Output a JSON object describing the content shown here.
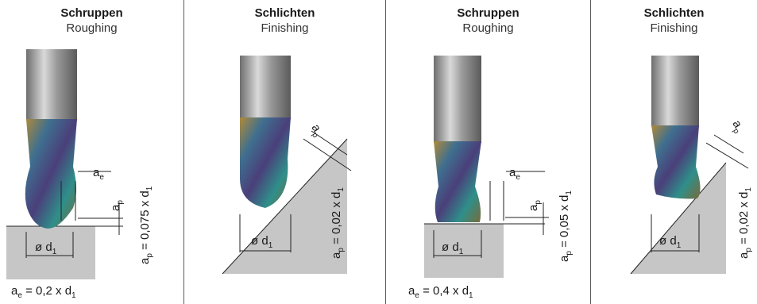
{
  "panels": [
    {
      "title": "Schruppen",
      "subtitle": "Roughing",
      "ae_label": "a",
      "ae_sub": "e",
      "ap_label": "a",
      "ap_sub": "p",
      "diameter_label": "ø d",
      "diameter_sub": "1",
      "ap_formula_pre": "a",
      "ap_formula_sub": "p",
      "ap_formula_post": " = 0,075 x d",
      "ap_formula_sub2": "1",
      "ae_formula_pre": "a",
      "ae_formula_sub": "e",
      "ae_formula_post": " = 0,2 x d",
      "ae_formula_sub2": "1"
    },
    {
      "title": "Schlichten",
      "subtitle": "Finishing",
      "ap_label": "a",
      "ap_sub": "p",
      "diameter_label": "ø d",
      "diameter_sub": "1",
      "ap_formula_pre": "a",
      "ap_formula_sub": "p",
      "ap_formula_post": " = 0,02 x d",
      "ap_formula_sub2": "1"
    },
    {
      "title": "Schruppen",
      "subtitle": "Roughing",
      "ae_label": "a",
      "ae_sub": "e",
      "ap_label": "a",
      "ap_sub": "p",
      "diameter_label": "ø d",
      "diameter_sub": "1",
      "ap_formula_pre": "a",
      "ap_formula_sub": "p",
      "ap_formula_post": " = 0,05 x d",
      "ap_formula_sub2": "1",
      "ae_formula_pre": "a",
      "ae_formula_sub": "e",
      "ae_formula_post": " = 0,4 x d",
      "ae_formula_sub2": "1"
    },
    {
      "title": "Schlichten",
      "subtitle": "Finishing",
      "ap_label": "a",
      "ap_sub": "p",
      "diameter_label": "ø d",
      "diameter_sub": "1",
      "ap_formula_pre": "a",
      "ap_formula_sub": "p",
      "ap_formula_post": " = 0,02 x d",
      "ap_formula_sub2": "1"
    }
  ],
  "colors": {
    "shank": "#a9a9a9",
    "workpiece": "#c6c6c6",
    "line": "#222222"
  }
}
